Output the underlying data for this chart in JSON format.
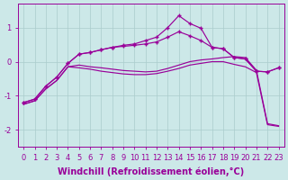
{
  "xlabel": "Windchill (Refroidissement éolien,°C)",
  "bg_color": "#cce8e8",
  "line_color": "#990099",
  "grid_color": "#aacccc",
  "x": [
    0,
    1,
    2,
    3,
    4,
    5,
    6,
    7,
    8,
    9,
    10,
    11,
    12,
    13,
    14,
    15,
    16,
    17,
    18,
    19,
    20,
    21,
    22,
    23
  ],
  "line1_marked": [
    -1.2,
    -1.1,
    -0.72,
    -0.45,
    -0.05,
    0.22,
    0.27,
    0.35,
    0.42,
    0.45,
    0.48,
    0.52,
    0.58,
    0.72,
    0.88,
    0.76,
    0.62,
    0.42,
    0.38,
    0.12,
    0.08,
    -0.28,
    -0.3,
    -0.18
  ],
  "line2_marked": [
    -1.2,
    -1.1,
    -0.72,
    -0.45,
    -0.05,
    0.22,
    0.27,
    0.35,
    0.42,
    0.48,
    0.52,
    0.62,
    0.72,
    1.0,
    1.35,
    1.12,
    0.98,
    0.42,
    0.38,
    0.12,
    0.08,
    -0.28,
    -0.3,
    -0.18
  ],
  "line3_nomark": [
    -1.25,
    -1.15,
    -0.8,
    -0.55,
    -0.15,
    -0.1,
    -0.15,
    -0.18,
    -0.22,
    -0.26,
    -0.28,
    -0.3,
    -0.28,
    -0.2,
    -0.1,
    0.0,
    0.05,
    0.08,
    0.12,
    0.15,
    0.12,
    -0.25,
    -1.82,
    -1.88
  ],
  "line4_nomark": [
    -1.25,
    -1.15,
    -0.8,
    -0.55,
    -0.15,
    -0.18,
    -0.22,
    -0.28,
    -0.32,
    -0.36,
    -0.38,
    -0.38,
    -0.35,
    -0.28,
    -0.2,
    -0.1,
    -0.05,
    0.0,
    0.0,
    -0.08,
    -0.15,
    -0.32,
    -1.85,
    -1.9
  ],
  "ylim": [
    -2.5,
    1.7
  ],
  "xlim": [
    -0.5,
    23.5
  ],
  "yticks": [
    -2,
    -1,
    0,
    1
  ],
  "xticks": [
    0,
    1,
    2,
    3,
    4,
    5,
    6,
    7,
    8,
    9,
    10,
    11,
    12,
    13,
    14,
    15,
    16,
    17,
    18,
    19,
    20,
    21,
    22,
    23
  ],
  "xtick_labels": [
    "0",
    "1",
    "2",
    "3",
    "4",
    "5",
    "6",
    "7",
    "8",
    "9",
    "10",
    "11",
    "12",
    "13",
    "14",
    "15",
    "16",
    "17",
    "18",
    "19",
    "20",
    "21",
    "22",
    "23"
  ],
  "fontsize_xlabel": 7,
  "fontsize_tick": 6,
  "marker": "+",
  "markersize": 3.5,
  "lw": 0.85
}
